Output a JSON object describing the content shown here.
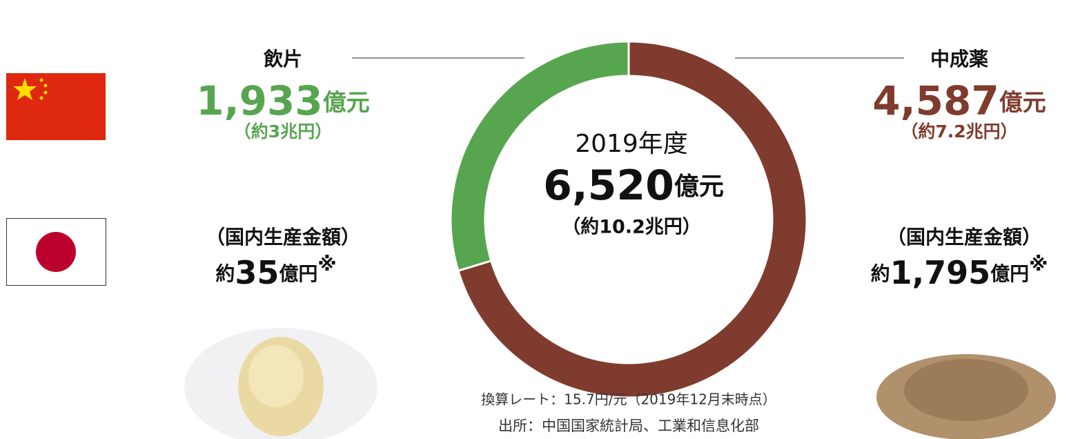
{
  "chart_data": {
    "type": "pie",
    "donut": true,
    "categories": [
      "飲片",
      "中成薬"
    ],
    "values": [
      1933,
      4587
    ],
    "value_labels": [
      "1,933",
      "4,587"
    ],
    "unit": "億元",
    "sub_labels": [
      "（約3兆円）",
      "（約7.2兆円）"
    ],
    "colors": [
      "#58a550",
      "#7f3b2d"
    ],
    "center": {
      "year": "2019年度",
      "total": 6520,
      "total_label": "6,520",
      "unit": "億元",
      "sub_label": "（約10.2兆円）"
    },
    "japan": {
      "heading": "（国内生産金額）",
      "items": [
        {
          "prefix": "約",
          "amount": "35",
          "unit": "億円",
          "mark": "※"
        },
        {
          "prefix": "約",
          "amount": "1,795",
          "unit": "億円",
          "mark": "※"
        }
      ]
    },
    "notes": [
      "換算レート：15.7円/元（2019年12月末時点）",
      "出所：中国国家統計局、工業和信息化部"
    ]
  }
}
